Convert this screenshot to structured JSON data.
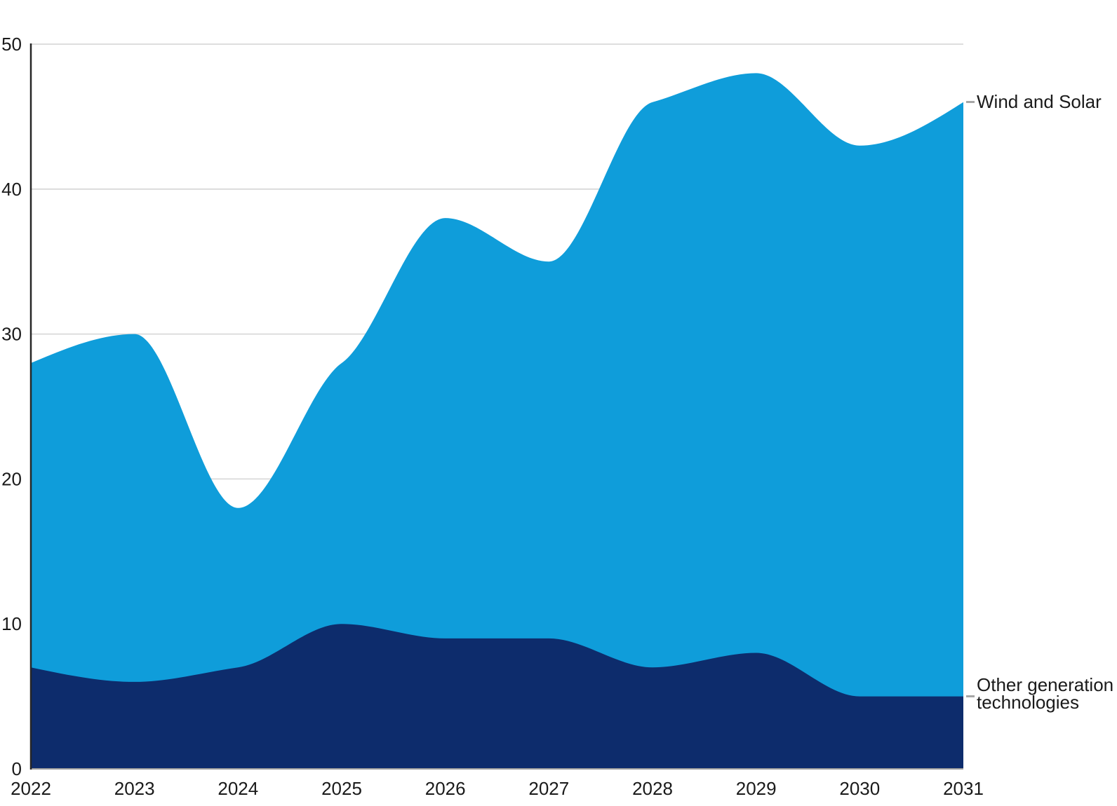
{
  "page": {
    "background": "#FFFFFF",
    "title": ""
  },
  "chart_data": {
    "type": "area",
    "stacked": true,
    "curve": "monotone",
    "title": "",
    "xlabel": "",
    "ylabel": "",
    "x": [
      2022,
      2023,
      2024,
      2025,
      2026,
      2027,
      2028,
      2029,
      2030,
      2031
    ],
    "series": [
      {
        "name": "Other generation technologies",
        "values": [
          7,
          6,
          7,
          10,
          9,
          9,
          7,
          8,
          5,
          5
        ],
        "color": "#0D2C6C"
      },
      {
        "name": "Wind and Solar",
        "values": [
          21,
          24,
          11,
          18,
          29,
          26,
          39,
          40,
          38,
          41
        ],
        "color": "#0F9DDA"
      }
    ],
    "stacked_totals": [
      28,
      30,
      18,
      28,
      38,
      35,
      46,
      48,
      43,
      46
    ],
    "ylim": [
      0,
      50
    ],
    "yticks": [
      0,
      10,
      20,
      30,
      40,
      50
    ],
    "xticks": [
      2022,
      2023,
      2024,
      2025,
      2026,
      2027,
      2028,
      2029,
      2030,
      2031
    ],
    "grid": "horizontal",
    "legend_position": "labels-at-right-edge"
  },
  "colors": {
    "wind_and_solar": "#0F9DDA",
    "other_generation": "#0D2C6C",
    "gridline": "#D9D9D9",
    "baseline": "#9E9E9E",
    "y_axis_line": "#262626",
    "tick_text": "#1A1A1A",
    "label_dash": "#A6A6A6"
  }
}
